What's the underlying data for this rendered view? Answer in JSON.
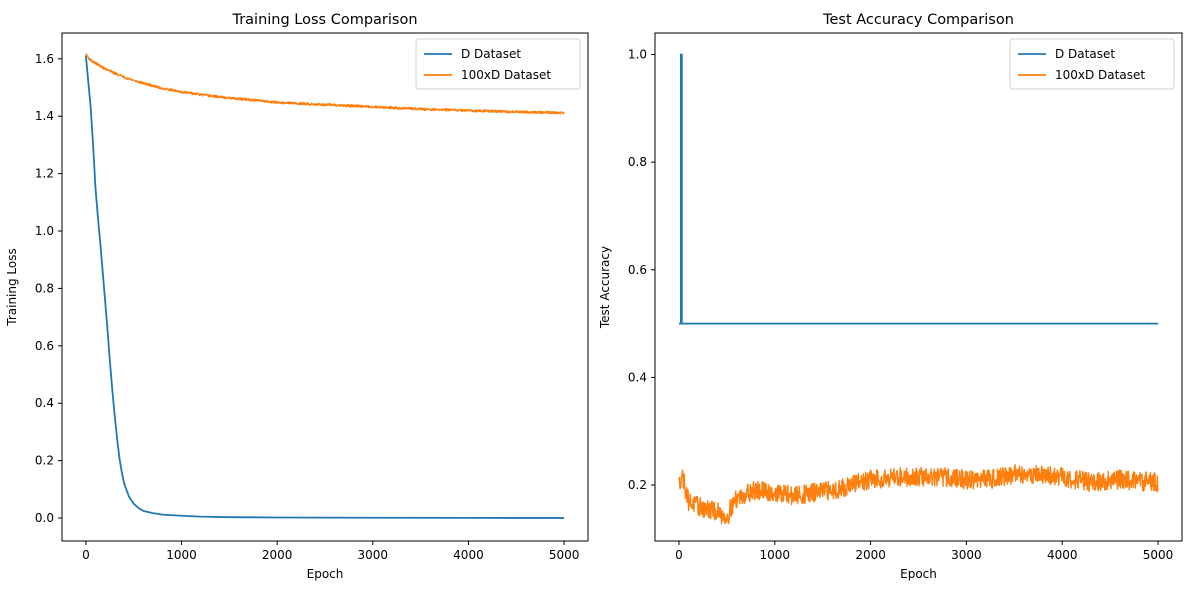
{
  "chart_data": [
    {
      "type": "line",
      "title": "Training Loss Comparison",
      "xlabel": "Epoch",
      "ylabel": "Training Loss",
      "xlim": [
        -250,
        5250
      ],
      "ylim": [
        -0.08,
        1.69
      ],
      "xticks": [
        0,
        1000,
        2000,
        3000,
        4000,
        5000
      ],
      "yticks": [
        0.0,
        0.2,
        0.4,
        0.6,
        0.8,
        1.0,
        1.2,
        1.4,
        1.6
      ],
      "ytick_decimals": 1,
      "grid": false,
      "legend_position": "top-right",
      "series": [
        {
          "name": "D Dataset",
          "color": "#1f77b4",
          "x": [
            0,
            25,
            50,
            75,
            100,
            125,
            150,
            175,
            200,
            225,
            250,
            275,
            300,
            325,
            350,
            375,
            400,
            450,
            500,
            550,
            600,
            700,
            800,
            1000,
            1200,
            1500,
            2000,
            3000,
            4000,
            5000
          ],
          "y": [
            1.61,
            1.52,
            1.43,
            1.3,
            1.15,
            1.05,
            0.96,
            0.86,
            0.76,
            0.66,
            0.55,
            0.45,
            0.36,
            0.28,
            0.21,
            0.16,
            0.12,
            0.075,
            0.05,
            0.035,
            0.025,
            0.017,
            0.012,
            0.008,
            0.005,
            0.003,
            0.002,
            0.001,
            0.0005,
            0.0003
          ]
        },
        {
          "name": "100xD Dataset",
          "color": "#ff7f0e",
          "x": [
            0,
            50,
            100,
            200,
            300,
            400,
            500,
            600,
            800,
            1000,
            1200,
            1500,
            1800,
            2000,
            2500,
            3000,
            3500,
            4000,
            4500,
            5000
          ],
          "y": [
            1.615,
            1.595,
            1.585,
            1.565,
            1.55,
            1.537,
            1.525,
            1.515,
            1.497,
            1.485,
            1.475,
            1.463,
            1.455,
            1.448,
            1.44,
            1.433,
            1.425,
            1.42,
            1.415,
            1.412
          ],
          "noise": 0.004
        }
      ]
    },
    {
      "type": "line",
      "title": "Test Accuracy Comparison",
      "xlabel": "Epoch",
      "ylabel": "Test Accuracy",
      "xlim": [
        -250,
        5250
      ],
      "ylim": [
        0.096,
        1.04
      ],
      "xticks": [
        0,
        1000,
        2000,
        3000,
        4000,
        5000
      ],
      "yticks": [
        0.2,
        0.4,
        0.6,
        0.8,
        1.0
      ],
      "ytick_decimals": 1,
      "grid": false,
      "legend_position": "top-right",
      "series": [
        {
          "name": "D Dataset",
          "color": "#1f77b4",
          "x": [
            0,
            20,
            20,
            30,
            30,
            5000
          ],
          "y": [
            0.5,
            0.5,
            1.0,
            1.0,
            0.5,
            0.5
          ]
        },
        {
          "name": "100xD Dataset",
          "color": "#ff7f0e",
          "x": [
            0,
            30,
            60,
            100,
            200,
            300,
            400,
            500,
            550,
            600,
            700,
            800,
            1000,
            1200,
            1400,
            1600,
            1800,
            2000,
            2200,
            2500,
            2800,
            3000,
            3200,
            3500,
            3700,
            4000,
            4300,
            4600,
            5000
          ],
          "y": [
            0.2,
            0.22,
            0.2,
            0.17,
            0.16,
            0.155,
            0.15,
            0.14,
            0.16,
            0.175,
            0.185,
            0.19,
            0.185,
            0.18,
            0.185,
            0.19,
            0.2,
            0.21,
            0.215,
            0.215,
            0.215,
            0.21,
            0.21,
            0.22,
            0.22,
            0.215,
            0.205,
            0.21,
            0.205
          ],
          "noise": 0.018
        }
      ]
    }
  ]
}
